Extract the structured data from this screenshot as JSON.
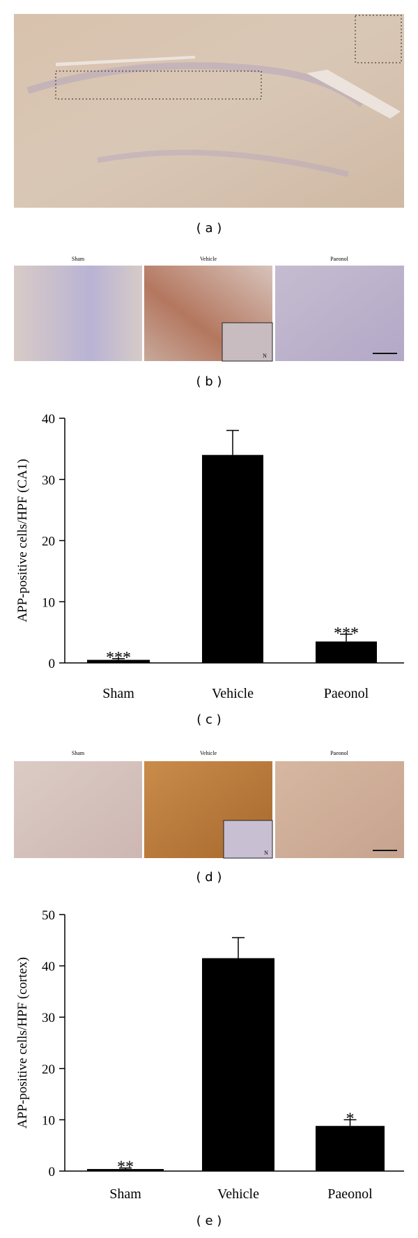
{
  "figure": {
    "panel_labels": [
      "( a )",
      "( b )",
      "( c )",
      "( d )",
      "( e )"
    ],
    "micrograph_rows": [
      {
        "titles": [
          "Sham",
          "Vehicle",
          "Paeonol"
        ],
        "inset_label": "N"
      },
      {
        "titles": [
          "Sham",
          "Vehicle",
          "Paeonol"
        ],
        "inset_label": "N"
      }
    ]
  },
  "chart_data": [
    {
      "type": "bar",
      "ylabel": "APP-positive cells/HPF (CA1)",
      "categories": [
        "Sham",
        "Vehicle",
        "Paeonol"
      ],
      "values": [
        0.5,
        34,
        3.5
      ],
      "errors": [
        0.2,
        4,
        1.2
      ],
      "annotations": [
        "***",
        null,
        "***"
      ],
      "color": "#000000",
      "ylim": [
        0,
        40
      ],
      "yticks": [
        0,
        10,
        20,
        30,
        40
      ]
    },
    {
      "type": "bar",
      "ylabel": "APP-positive cells/HPF (cortex)",
      "categories": [
        "Sham",
        "Vehicle",
        "Paeonol"
      ],
      "values": [
        0.4,
        41.5,
        8.8
      ],
      "errors": [
        0.2,
        4,
        1.2
      ],
      "annotations": [
        "**",
        null,
        "*"
      ],
      "color": "#000000",
      "ylim": [
        0,
        50
      ],
      "yticks": [
        0,
        10,
        20,
        30,
        40,
        50
      ]
    }
  ]
}
